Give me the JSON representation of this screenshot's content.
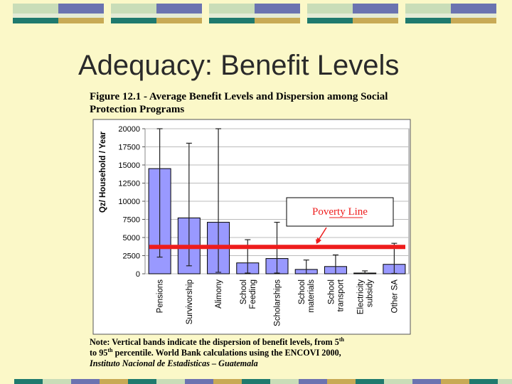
{
  "slide": {
    "title": "Adequacy: Benefit Levels"
  },
  "figure": {
    "title": "Figure 12.1 - Average Benefit Levels and Dispersion among Social Protection Programs",
    "note_part1": "Note: Vertical bands indicate the dispersion of benefit levels, from 5",
    "note_sup1": "th",
    "note_part2": " to 95",
    "note_sup2": "th",
    "note_part3": " percentile.  World Bank calculations using the ENCOVI 2000,",
    "note_source": "Instituto Nacional de Estadisticas – Guatemala"
  },
  "chart_data": {
    "type": "bar",
    "title": "Figure 12.1 - Average Benefit Levels and Dispersion among Social Protection Programs",
    "xlabel": "",
    "ylabel": "Qz/ Household / Year",
    "ylim": [
      0,
      20000
    ],
    "yticks": [
      0,
      2500,
      5000,
      7500,
      10000,
      12500,
      15000,
      17500,
      20000
    ],
    "ytick_labels": [
      "0",
      "2500",
      "5000",
      "7500",
      "10000",
      "12500",
      "15000",
      "17500",
      "20000"
    ],
    "grid": true,
    "categories": [
      "Pensions",
      "Survivorship",
      "Alimony",
      "School Feeding",
      "Scholarships",
      "School materials",
      "School transport",
      "Electricity subsidy",
      "Other SA"
    ],
    "category_lines": [
      [
        "Pensions"
      ],
      [
        "Survivorship"
      ],
      [
        "Alimony"
      ],
      [
        "School",
        "Feeding"
      ],
      [
        "Scholarships"
      ],
      [
        "School",
        "materials"
      ],
      [
        "School",
        "transport"
      ],
      [
        "Electricity",
        "subsidy"
      ],
      [
        "Other SA"
      ]
    ],
    "values": [
      14500,
      7700,
      7100,
      1500,
      2100,
      600,
      1000,
      100,
      1300
    ],
    "error_low": [
      2300,
      1100,
      200,
      100,
      100,
      0,
      0,
      0,
      50
    ],
    "error_high": [
      20000,
      18000,
      20000,
      4700,
      7100,
      1900,
      2600,
      400,
      4200
    ],
    "reference_line": {
      "label": "Poverty Line",
      "value": 3700,
      "color": "#ee1c1c"
    },
    "bar_color": "#9999ff",
    "plot_background": "#ffffff"
  },
  "colors": {
    "background": "#fbf8c8",
    "deco_teal": "#1f7a6e",
    "deco_navy": "#6b73b0",
    "deco_gold": "#c8aa55",
    "deco_light": "#c9ddb8",
    "deco_pale": "#e4ebd6"
  }
}
